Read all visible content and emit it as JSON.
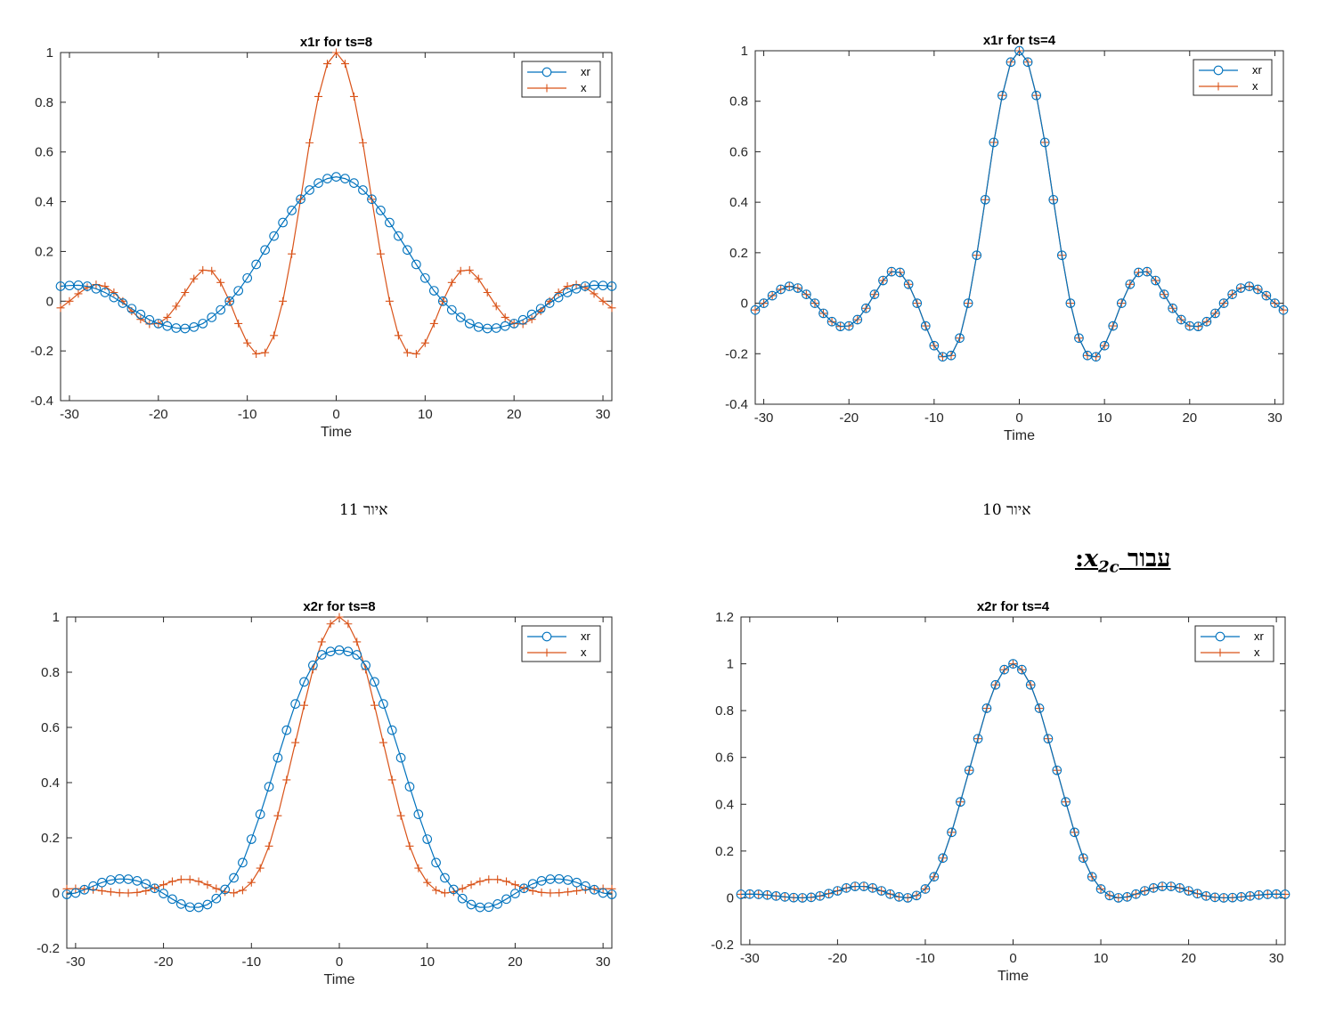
{
  "captions": {
    "fig11": "איור 11",
    "fig10": "איור 10"
  },
  "section_heading": {
    "word": "עבור",
    "var": "x",
    "sub": "2c",
    "colon": ":"
  },
  "colors": {
    "xr": "#0072BD",
    "x": "#D95319"
  },
  "chart_data": [
    {
      "id": "x1r_ts8",
      "type": "line",
      "title": "x1r for ts=8",
      "xlabel": "Time",
      "ylabel": "",
      "xlim": [
        -31,
        31
      ],
      "ylim": [
        -0.4,
        1
      ],
      "xticks": [
        -30,
        -20,
        -10,
        0,
        10,
        20,
        30
      ],
      "yticks": [
        -0.4,
        -0.2,
        0,
        0.2,
        0.4,
        0.6,
        0.8,
        1
      ],
      "legend_position": "top-right",
      "grid": false,
      "x": [
        -31,
        -30,
        -29,
        -28,
        -27,
        -26,
        -25,
        -24,
        -23,
        -22,
        -21,
        -20,
        -19,
        -18,
        -17,
        -16,
        -15,
        -14,
        -13,
        -12,
        -11,
        -10,
        -9,
        -8,
        -7,
        -6,
        -5,
        -4,
        -3,
        -2,
        -1,
        0,
        1,
        2,
        3,
        4,
        5,
        6,
        7,
        8,
        9,
        10,
        11,
        12,
        13,
        14,
        15,
        16,
        17,
        18,
        19,
        20,
        21,
        22,
        23,
        24,
        25,
        26,
        27,
        28,
        29,
        30,
        31
      ],
      "series": [
        {
          "name": "xr",
          "marker": "circle",
          "values": [
            0.06,
            0.063,
            0.064,
            0.06,
            0.05,
            0.035,
            0.015,
            -0.008,
            -0.03,
            -0.053,
            -0.075,
            -0.09,
            -0.1,
            -0.108,
            -0.11,
            -0.104,
            -0.09,
            -0.065,
            -0.035,
            0,
            0.042,
            0.093,
            0.148,
            0.206,
            0.262,
            0.316,
            0.365,
            0.41,
            0.447,
            0.475,
            0.493,
            0.5,
            0.493,
            0.475,
            0.447,
            0.41,
            0.365,
            0.316,
            0.262,
            0.206,
            0.148,
            0.093,
            0.042,
            0,
            -0.035,
            -0.065,
            -0.09,
            -0.104,
            -0.11,
            -0.108,
            -0.1,
            -0.09,
            -0.075,
            -0.053,
            -0.03,
            -0.008,
            0.015,
            0.035,
            0.05,
            0.06,
            0.064,
            0.063,
            0.06
          ]
        },
        {
          "name": "x",
          "marker": "plus",
          "values": [
            -0.027,
            0,
            0.03,
            0.055,
            0.067,
            0.06,
            0.035,
            0,
            -0.04,
            -0.073,
            -0.092,
            -0.09,
            -0.065,
            -0.02,
            0.035,
            0.09,
            0.125,
            0.122,
            0.075,
            0,
            -0.09,
            -0.168,
            -0.212,
            -0.207,
            -0.138,
            0,
            0.19,
            0.41,
            0.637,
            0.823,
            0.955,
            1,
            0.955,
            0.823,
            0.637,
            0.41,
            0.19,
            0,
            -0.138,
            -0.207,
            -0.212,
            -0.168,
            -0.09,
            0,
            0.075,
            0.122,
            0.125,
            0.09,
            0.035,
            -0.02,
            -0.065,
            -0.09,
            -0.092,
            -0.073,
            -0.04,
            0,
            0.035,
            0.06,
            0.067,
            0.055,
            0.03,
            0,
            -0.027
          ]
        }
      ]
    },
    {
      "id": "x1r_ts4",
      "type": "line",
      "title": "x1r for ts=4",
      "xlabel": "Time",
      "ylabel": "",
      "xlim": [
        -31,
        31
      ],
      "ylim": [
        -0.4,
        1
      ],
      "xticks": [
        -30,
        -20,
        -10,
        0,
        10,
        20,
        30
      ],
      "yticks": [
        -0.4,
        -0.2,
        0,
        0.2,
        0.4,
        0.6,
        0.8,
        1
      ],
      "legend_position": "top-right",
      "grid": false,
      "x": [
        -31,
        -30,
        -29,
        -28,
        -27,
        -26,
        -25,
        -24,
        -23,
        -22,
        -21,
        -20,
        -19,
        -18,
        -17,
        -16,
        -15,
        -14,
        -13,
        -12,
        -11,
        -10,
        -9,
        -8,
        -7,
        -6,
        -5,
        -4,
        -3,
        -2,
        -1,
        0,
        1,
        2,
        3,
        4,
        5,
        6,
        7,
        8,
        9,
        10,
        11,
        12,
        13,
        14,
        15,
        16,
        17,
        18,
        19,
        20,
        21,
        22,
        23,
        24,
        25,
        26,
        27,
        28,
        29,
        30,
        31
      ],
      "series": [
        {
          "name": "xr",
          "marker": "circle",
          "values": [
            -0.027,
            0,
            0.03,
            0.055,
            0.067,
            0.06,
            0.035,
            0,
            -0.04,
            -0.073,
            -0.092,
            -0.09,
            -0.065,
            -0.02,
            0.035,
            0.09,
            0.125,
            0.122,
            0.075,
            0,
            -0.09,
            -0.168,
            -0.212,
            -0.207,
            -0.138,
            0,
            0.19,
            0.41,
            0.637,
            0.823,
            0.955,
            1,
            0.955,
            0.823,
            0.637,
            0.41,
            0.19,
            0,
            -0.138,
            -0.207,
            -0.212,
            -0.168,
            -0.09,
            0,
            0.075,
            0.122,
            0.125,
            0.09,
            0.035,
            -0.02,
            -0.065,
            -0.09,
            -0.092,
            -0.073,
            -0.04,
            0,
            0.035,
            0.06,
            0.067,
            0.055,
            0.03,
            0,
            -0.027
          ]
        },
        {
          "name": "x",
          "marker": "plus",
          "values": [
            -0.027,
            0,
            0.03,
            0.055,
            0.067,
            0.06,
            0.035,
            0,
            -0.04,
            -0.073,
            -0.092,
            -0.09,
            -0.065,
            -0.02,
            0.035,
            0.09,
            0.125,
            0.122,
            0.075,
            0,
            -0.09,
            -0.168,
            -0.212,
            -0.207,
            -0.138,
            0,
            0.19,
            0.41,
            0.637,
            0.823,
            0.955,
            1,
            0.955,
            0.823,
            0.637,
            0.41,
            0.19,
            0,
            -0.138,
            -0.207,
            -0.212,
            -0.168,
            -0.09,
            0,
            0.075,
            0.122,
            0.125,
            0.09,
            0.035,
            -0.02,
            -0.065,
            -0.09,
            -0.092,
            -0.073,
            -0.04,
            0,
            0.035,
            0.06,
            0.067,
            0.055,
            0.03,
            0,
            -0.027
          ]
        }
      ]
    },
    {
      "id": "x2r_ts8",
      "type": "line",
      "title": "x2r for ts=8",
      "xlabel": "Time",
      "ylabel": "",
      "xlim": [
        -31,
        31
      ],
      "ylim": [
        -0.2,
        1
      ],
      "xticks": [
        -30,
        -20,
        -10,
        0,
        10,
        20,
        30
      ],
      "yticks": [
        -0.2,
        0,
        0.2,
        0.4,
        0.6,
        0.8,
        1
      ],
      "legend_position": "top-right",
      "grid": false,
      "x": [
        -31,
        -30,
        -29,
        -28,
        -27,
        -26,
        -25,
        -24,
        -23,
        -22,
        -21,
        -20,
        -19,
        -18,
        -17,
        -16,
        -15,
        -14,
        -13,
        -12,
        -11,
        -10,
        -9,
        -8,
        -7,
        -6,
        -5,
        -4,
        -3,
        -2,
        -1,
        0,
        1,
        2,
        3,
        4,
        5,
        6,
        7,
        8,
        9,
        10,
        11,
        12,
        13,
        14,
        15,
        16,
        17,
        18,
        19,
        20,
        21,
        22,
        23,
        24,
        25,
        26,
        27,
        28,
        29,
        30,
        31
      ],
      "series": [
        {
          "name": "xr",
          "marker": "circle",
          "values": [
            -0.005,
            0,
            0.012,
            0.025,
            0.038,
            0.047,
            0.051,
            0.05,
            0.044,
            0.033,
            0.017,
            -0.002,
            -0.022,
            -0.04,
            -0.051,
            -0.052,
            -0.042,
            -0.02,
            0.013,
            0.055,
            0.11,
            0.195,
            0.285,
            0.385,
            0.49,
            0.59,
            0.685,
            0.765,
            0.825,
            0.863,
            0.875,
            0.88,
            0.875,
            0.863,
            0.825,
            0.765,
            0.685,
            0.59,
            0.49,
            0.385,
            0.285,
            0.195,
            0.11,
            0.055,
            0.013,
            -0.02,
            -0.042,
            -0.052,
            -0.051,
            -0.04,
            -0.022,
            -0.002,
            0.017,
            0.033,
            0.044,
            0.05,
            0.051,
            0.047,
            0.038,
            0.025,
            0.012,
            0,
            -0.005
          ]
        },
        {
          "name": "x",
          "marker": "plus",
          "values": [
            0.015,
            0.016,
            0.015,
            0.012,
            0.008,
            0.004,
            0.001,
            0,
            0.002,
            0.008,
            0.018,
            0.03,
            0.042,
            0.049,
            0.049,
            0.042,
            0.03,
            0.016,
            0.004,
            0,
            0.01,
            0.038,
            0.09,
            0.17,
            0.28,
            0.41,
            0.545,
            0.68,
            0.81,
            0.91,
            0.975,
            1,
            0.975,
            0.91,
            0.81,
            0.68,
            0.545,
            0.41,
            0.28,
            0.17,
            0.09,
            0.038,
            0.01,
            0,
            0.004,
            0.016,
            0.03,
            0.042,
            0.049,
            0.049,
            0.042,
            0.03,
            0.018,
            0.008,
            0.002,
            0,
            0.001,
            0.004,
            0.008,
            0.012,
            0.015,
            0.016,
            0.015
          ]
        }
      ]
    },
    {
      "id": "x2r_ts4",
      "type": "line",
      "title": "x2r for ts=4",
      "xlabel": "Time",
      "ylabel": "",
      "xlim": [
        -31,
        31
      ],
      "ylim": [
        -0.2,
        1.2
      ],
      "xticks": [
        -30,
        -20,
        -10,
        0,
        10,
        20,
        30
      ],
      "yticks": [
        -0.2,
        0,
        0.2,
        0.4,
        0.6,
        0.8,
        1,
        1.2
      ],
      "legend_position": "top-right",
      "grid": false,
      "x": [
        -31,
        -30,
        -29,
        -28,
        -27,
        -26,
        -25,
        -24,
        -23,
        -22,
        -21,
        -20,
        -19,
        -18,
        -17,
        -16,
        -15,
        -14,
        -13,
        -12,
        -11,
        -10,
        -9,
        -8,
        -7,
        -6,
        -5,
        -4,
        -3,
        -2,
        -1,
        0,
        1,
        2,
        3,
        4,
        5,
        6,
        7,
        8,
        9,
        10,
        11,
        12,
        13,
        14,
        15,
        16,
        17,
        18,
        19,
        20,
        21,
        22,
        23,
        24,
        25,
        26,
        27,
        28,
        29,
        30,
        31
      ],
      "series": [
        {
          "name": "xr",
          "marker": "circle",
          "values": [
            0.015,
            0.016,
            0.015,
            0.012,
            0.008,
            0.004,
            0.001,
            0,
            0.002,
            0.008,
            0.018,
            0.03,
            0.042,
            0.049,
            0.049,
            0.042,
            0.03,
            0.016,
            0.004,
            0,
            0.01,
            0.038,
            0.09,
            0.17,
            0.28,
            0.41,
            0.545,
            0.68,
            0.81,
            0.91,
            0.975,
            1,
            0.975,
            0.91,
            0.81,
            0.68,
            0.545,
            0.41,
            0.28,
            0.17,
            0.09,
            0.038,
            0.01,
            0,
            0.004,
            0.016,
            0.03,
            0.042,
            0.049,
            0.049,
            0.042,
            0.03,
            0.018,
            0.008,
            0.002,
            0,
            0.001,
            0.004,
            0.008,
            0.012,
            0.015,
            0.016,
            0.015
          ]
        },
        {
          "name": "x",
          "marker": "plus",
          "values": [
            0.015,
            0.016,
            0.015,
            0.012,
            0.008,
            0.004,
            0.001,
            0,
            0.002,
            0.008,
            0.018,
            0.03,
            0.042,
            0.049,
            0.049,
            0.042,
            0.03,
            0.016,
            0.004,
            0,
            0.01,
            0.038,
            0.09,
            0.17,
            0.28,
            0.41,
            0.545,
            0.68,
            0.81,
            0.91,
            0.975,
            1,
            0.975,
            0.91,
            0.81,
            0.68,
            0.545,
            0.41,
            0.28,
            0.17,
            0.09,
            0.038,
            0.01,
            0,
            0.004,
            0.016,
            0.03,
            0.042,
            0.049,
            0.049,
            0.042,
            0.03,
            0.018,
            0.008,
            0.002,
            0,
            0.001,
            0.004,
            0.008,
            0.012,
            0.015,
            0.016,
            0.015
          ]
        }
      ]
    }
  ]
}
